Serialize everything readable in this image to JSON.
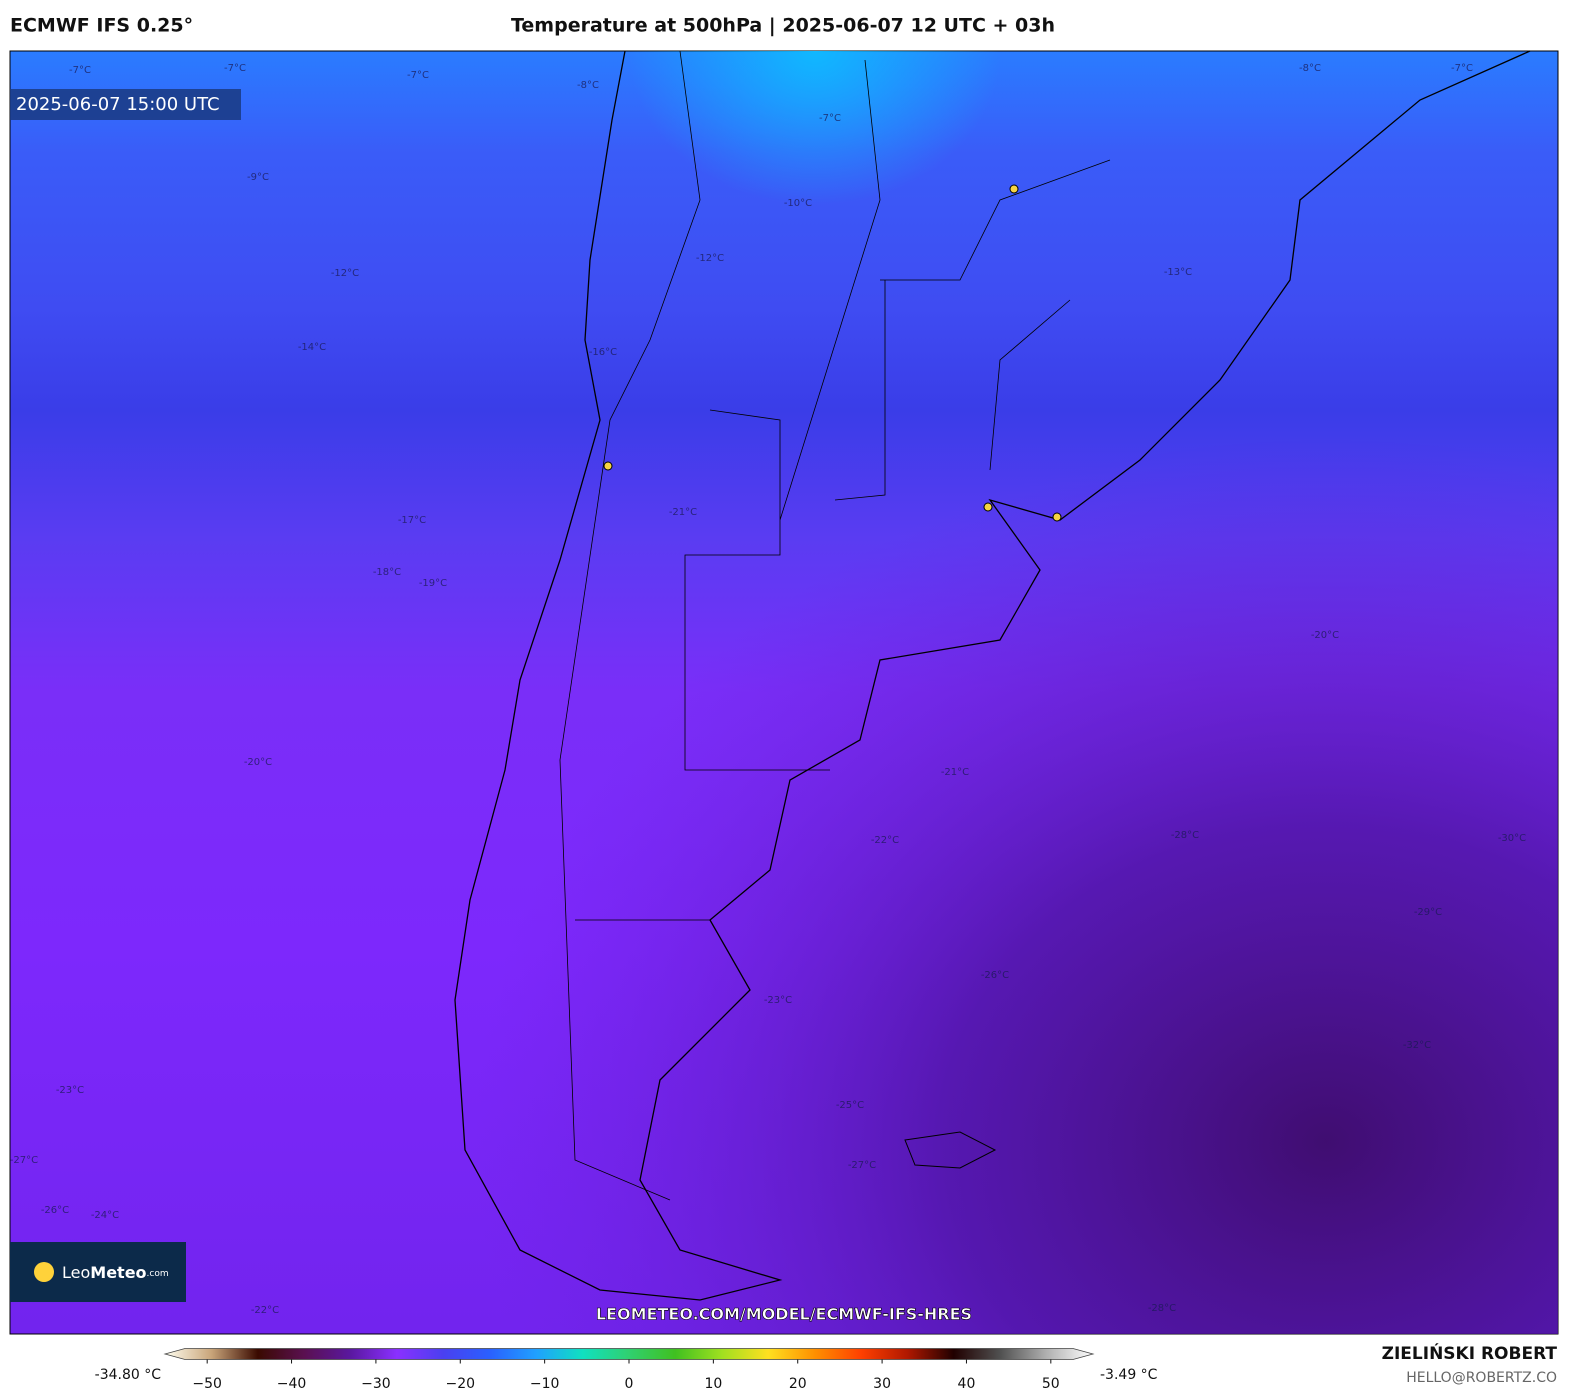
{
  "header": {
    "model": "ECMWF IFS 0.25°",
    "title": "Temperature at 500hPa | 2025-06-07 12 UTC + 03h",
    "author": "ZIELIŃSKI ROBERT",
    "contact": "HELLO@ROBERTZ.CO"
  },
  "map": {
    "timestamp": "2025-06-07 15:00 UTC",
    "source_url": "LEOMETEO.COM/MODEL/ECMWF-IFS-HRES",
    "logo_first": "Leo",
    "logo_second": "Meteo",
    "logo_suffix": ".com",
    "contour_labels": [
      "-7°C",
      "-7°C",
      "-7°C",
      "-8°C",
      "-7°C",
      "-8°C",
      "-7°C",
      "-9°C",
      "-10°C",
      "-12°C",
      "-12°C",
      "-13°C",
      "-14°C",
      "-16°C",
      "-17°C",
      "-18°C",
      "-19°C",
      "-20°C",
      "-20°C",
      "-21°C",
      "-21°C",
      "-22°C",
      "-23°C",
      "-25°C",
      "-26°C",
      "-27°C",
      "-28°C",
      "-29°C",
      "-30°C",
      "-24°C",
      "-22°C",
      "-23°C",
      "-27°C",
      "-26°C",
      "-28°C",
      "-32°C"
    ]
  },
  "colorbar": {
    "min_label": "-34.80 °C",
    "max_label": "-3.49 °C",
    "range": [
      -55,
      55
    ],
    "ticks": [
      {
        "value": -50,
        "label": "−50"
      },
      {
        "value": -40,
        "label": "−40"
      },
      {
        "value": -30,
        "label": "−30"
      },
      {
        "value": -20,
        "label": "−20"
      },
      {
        "value": -10,
        "label": "−10"
      },
      0,
      10,
      20,
      30,
      40,
      50
    ]
  }
}
